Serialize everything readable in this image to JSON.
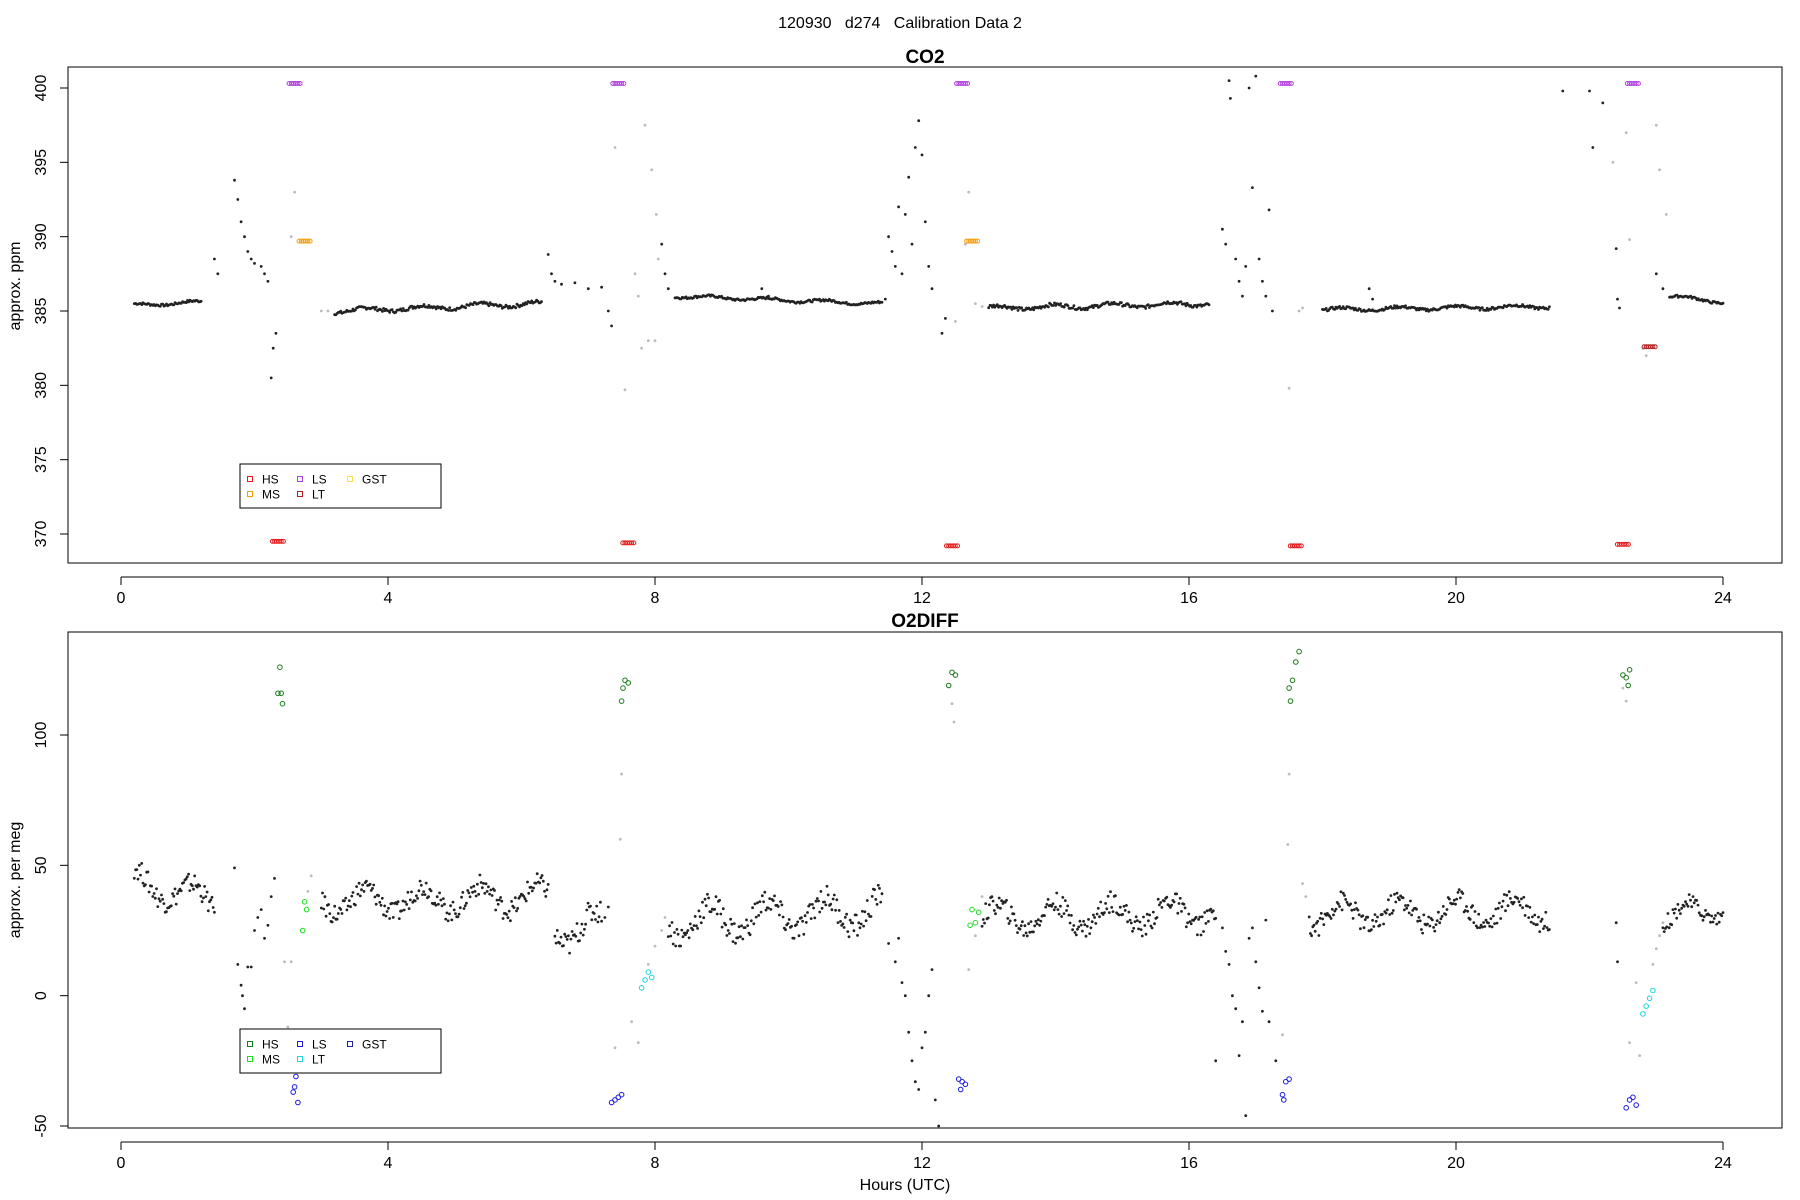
{
  "page_title": "120930   d274   Calibration Data 2",
  "xlabel": "Hours (UTC)",
  "chart_data": [
    {
      "type": "scatter",
      "title": "CO2",
      "xlabel": "",
      "ylabel": "approx. ppm",
      "xlim": [
        0,
        24
      ],
      "ylim": [
        369,
        401
      ],
      "xticks": [
        0,
        4,
        8,
        12,
        16,
        20,
        24
      ],
      "yticks": [
        370,
        375,
        380,
        385,
        390,
        395,
        400
      ],
      "legend": {
        "placement": "bottom-left",
        "entries": [
          {
            "label": "HS",
            "color": "#e41a1c"
          },
          {
            "label": "MS",
            "color": "#f59e0b"
          },
          {
            "label": "LS",
            "color": "#b040e0"
          },
          {
            "label": "LT",
            "color": "#b22222"
          },
          {
            "label": "GST",
            "color": "#f5e050"
          }
        ]
      },
      "calibrations": [
        {
          "name": "HS",
          "color": "#e41a1c",
          "points": [
            [
              2.35,
              369.5
            ],
            [
              7.6,
              369.4
            ],
            [
              12.45,
              369.2
            ],
            [
              17.6,
              369.2
            ],
            [
              22.5,
              369.3
            ]
          ]
        },
        {
          "name": "MS",
          "color": "#f59e0b",
          "points": [
            [
              2.75,
              389.7
            ],
            [
              12.75,
              389.7
            ]
          ]
        },
        {
          "name": "LS",
          "color": "#b040e0",
          "points": [
            [
              2.6,
              400.3
            ],
            [
              7.45,
              400.3
            ],
            [
              12.6,
              400.3
            ],
            [
              17.45,
              400.3
            ],
            [
              22.65,
              400.3
            ]
          ]
        },
        {
          "name": "LT",
          "color": "#b22222",
          "points": [
            [
              22.9,
              382.6
            ]
          ]
        }
      ],
      "ambient_segments": [
        {
          "x": [
            0.2,
            1.2
          ],
          "y": [
            385.4,
            385.6
          ],
          "wave": 0.1
        },
        {
          "x": [
            3.2,
            6.3
          ],
          "y": [
            385.0,
            385.5
          ],
          "wave": 0.15
        },
        {
          "x": [
            8.3,
            11.4
          ],
          "y": [
            386.0,
            385.5
          ],
          "wave": 0.1
        },
        {
          "x": [
            13.0,
            16.3
          ],
          "y": [
            385.2,
            385.5
          ],
          "wave": 0.15
        },
        {
          "x": [
            18.0,
            21.4
          ],
          "y": [
            385.1,
            385.3
          ],
          "wave": 0.12
        },
        {
          "x": [
            23.2,
            24.0
          ],
          "y": [
            386.0,
            385.6
          ],
          "wave": 0.1
        }
      ],
      "transient_points": [
        [
          1.4,
          388.5
        ],
        [
          1.45,
          387.5
        ],
        [
          1.7,
          393.8
        ],
        [
          1.75,
          392.5
        ],
        [
          1.8,
          391.0
        ],
        [
          1.85,
          390.0
        ],
        [
          1.9,
          389.0
        ],
        [
          1.95,
          388.5
        ],
        [
          2.0,
          388.2
        ],
        [
          2.1,
          388.0
        ],
        [
          2.15,
          387.5
        ],
        [
          2.2,
          387.0
        ],
        [
          2.25,
          380.5
        ],
        [
          2.28,
          382.5
        ],
        [
          2.32,
          383.5
        ],
        [
          6.4,
          388.8
        ],
        [
          6.45,
          387.5
        ],
        [
          6.5,
          387.0
        ],
        [
          6.6,
          386.8
        ],
        [
          6.8,
          386.9
        ],
        [
          7.0,
          386.5
        ],
        [
          7.2,
          386.6
        ],
        [
          7.3,
          385.0
        ],
        [
          7.35,
          384.0
        ],
        [
          8.1,
          389.5
        ],
        [
          8.15,
          387.5
        ],
        [
          8.2,
          386.5
        ],
        [
          9.6,
          386.5
        ],
        [
          9.7,
          386.0
        ],
        [
          11.45,
          385.8
        ],
        [
          11.5,
          390.0
        ],
        [
          11.55,
          389.0
        ],
        [
          11.6,
          388.0
        ],
        [
          11.65,
          392.0
        ],
        [
          11.7,
          387.5
        ],
        [
          11.75,
          391.5
        ],
        [
          11.8,
          394.0
        ],
        [
          11.85,
          389.5
        ],
        [
          11.9,
          396.0
        ],
        [
          11.95,
          397.8
        ],
        [
          12.0,
          395.5
        ],
        [
          12.05,
          391.0
        ],
        [
          12.1,
          388.0
        ],
        [
          12.15,
          386.5
        ],
        [
          11.98,
          401.2
        ],
        [
          12.3,
          383.5
        ],
        [
          12.35,
          384.5
        ],
        [
          16.5,
          390.5
        ],
        [
          16.55,
          389.5
        ],
        [
          16.6,
          400.5
        ],
        [
          16.62,
          399.3
        ],
        [
          16.7,
          388.5
        ],
        [
          16.75,
          387.0
        ],
        [
          16.8,
          386.0
        ],
        [
          16.85,
          388.0
        ],
        [
          16.9,
          400.0
        ],
        [
          16.95,
          393.3
        ],
        [
          17.0,
          400.8
        ],
        [
          17.05,
          388.5
        ],
        [
          17.1,
          387.0
        ],
        [
          17.15,
          386.0
        ],
        [
          17.2,
          391.8
        ],
        [
          17.25,
          385.0
        ],
        [
          18.7,
          386.5
        ],
        [
          18.75,
          385.8
        ],
        [
          21.6,
          399.8
        ],
        [
          22.0,
          399.8
        ],
        [
          22.2,
          399.0
        ],
        [
          22.05,
          396.0
        ],
        [
          22.4,
          389.2
        ],
        [
          22.42,
          385.8
        ],
        [
          22.45,
          385.2
        ],
        [
          23.0,
          387.5
        ],
        [
          23.1,
          386.5
        ]
      ],
      "transition_points": [
        [
          3.0,
          385.0
        ],
        [
          3.1,
          385.0
        ],
        [
          2.6,
          393.0
        ],
        [
          2.55,
          390.0
        ],
        [
          7.4,
          396.0
        ],
        [
          7.55,
          379.7
        ],
        [
          7.8,
          382.5
        ],
        [
          7.9,
          383.0
        ],
        [
          8.0,
          383.0
        ],
        [
          7.85,
          397.5
        ],
        [
          7.95,
          394.5
        ],
        [
          8.02,
          391.5
        ],
        [
          8.05,
          388.5
        ],
        [
          7.7,
          387.5
        ],
        [
          7.75,
          386.0
        ],
        [
          12.5,
          384.3
        ],
        [
          12.65,
          389.5
        ],
        [
          12.7,
          393.0
        ],
        [
          12.8,
          385.5
        ],
        [
          12.9,
          385.3
        ],
        [
          17.5,
          379.8
        ],
        [
          17.65,
          385.0
        ],
        [
          17.7,
          385.2
        ],
        [
          22.55,
          397.0
        ],
        [
          22.8,
          382.5
        ],
        [
          22.85,
          382.0
        ],
        [
          23.0,
          397.5
        ],
        [
          23.05,
          394.5
        ],
        [
          23.15,
          391.5
        ],
        [
          22.35,
          395.0
        ],
        [
          22.6,
          389.8
        ]
      ]
    },
    {
      "type": "scatter",
      "title": "O2DIFF",
      "xlabel": "Hours (UTC)",
      "ylabel": "approx. per meg",
      "xlim": [
        0,
        24
      ],
      "ylim": [
        -50,
        140
      ],
      "xticks": [
        0,
        4,
        8,
        12,
        16,
        20,
        24
      ],
      "yticks": [
        -50,
        0,
        50,
        100
      ],
      "legend": {
        "placement": "bottom-left",
        "entries": [
          {
            "label": "HS",
            "color": "#1a7a1a"
          },
          {
            "label": "MS",
            "color": "#22dd22"
          },
          {
            "label": "LS",
            "color": "#1c1cdd"
          },
          {
            "label": "LT",
            "color": "#22d3e0"
          },
          {
            "label": "GST",
            "color": "#2020a0"
          }
        ]
      },
      "calibrations": [
        {
          "name": "HS",
          "color": "#1a7a1a",
          "points": [
            [
              2.38,
              126
            ],
            [
              2.35,
              116
            ],
            [
              2.4,
              116
            ],
            [
              2.42,
              112
            ],
            [
              7.55,
              121
            ],
            [
              7.6,
              120
            ],
            [
              7.5,
              113
            ],
            [
              7.52,
              118
            ],
            [
              12.45,
              124
            ],
            [
              12.4,
              119
            ],
            [
              12.5,
              123
            ],
            [
              17.65,
              132
            ],
            [
              17.6,
              128
            ],
            [
              17.55,
              121
            ],
            [
              17.5,
              118
            ],
            [
              17.52,
              113
            ],
            [
              22.5,
              123
            ],
            [
              22.55,
              122
            ],
            [
              22.6,
              125
            ],
            [
              22.58,
              119
            ]
          ]
        },
        {
          "name": "MS",
          "color": "#22dd22",
          "points": [
            [
              2.75,
              36
            ],
            [
              2.78,
              33
            ],
            [
              2.72,
              25
            ],
            [
              12.75,
              33
            ],
            [
              12.8,
              28
            ],
            [
              12.72,
              27
            ],
            [
              12.85,
              32
            ]
          ]
        },
        {
          "name": "LS",
          "color": "#1c1cdd",
          "points": [
            [
              2.6,
              -35
            ],
            [
              2.62,
              -31
            ],
            [
              2.58,
              -37
            ],
            [
              2.65,
              -41
            ],
            [
              7.4,
              -40
            ],
            [
              7.45,
              -39
            ],
            [
              7.5,
              -38
            ],
            [
              7.35,
              -41
            ],
            [
              12.55,
              -32
            ],
            [
              12.6,
              -33
            ],
            [
              12.65,
              -34
            ],
            [
              12.58,
              -36
            ],
            [
              17.45,
              -33
            ],
            [
              17.5,
              -32
            ],
            [
              17.4,
              -38
            ],
            [
              17.42,
              -40
            ],
            [
              22.6,
              -40
            ],
            [
              22.65,
              -39
            ],
            [
              22.55,
              -43
            ],
            [
              22.7,
              -42
            ]
          ]
        },
        {
          "name": "LT",
          "color": "#22d3e0",
          "points": [
            [
              7.8,
              3
            ],
            [
              7.85,
              6
            ],
            [
              7.9,
              9
            ],
            [
              7.95,
              7
            ],
            [
              22.8,
              -7
            ],
            [
              22.85,
              -4
            ],
            [
              22.9,
              -1
            ],
            [
              22.95,
              2
            ]
          ]
        }
      ],
      "ambient_segments": [
        {
          "x": [
            0.2,
            1.4
          ],
          "y": [
            44,
            36
          ],
          "wave": 5
        },
        {
          "x": [
            3.0,
            6.4
          ],
          "y": [
            36,
            38
          ],
          "wave": 5
        },
        {
          "x": [
            6.5,
            7.2
          ],
          "y": [
            25,
            27
          ],
          "wave": 6
        },
        {
          "x": [
            8.2,
            11.4
          ],
          "y": [
            28,
            33
          ],
          "wave": 6
        },
        {
          "x": [
            12.9,
            16.4
          ],
          "y": [
            30,
            32
          ],
          "wave": 5
        },
        {
          "x": [
            17.8,
            21.4
          ],
          "y": [
            31,
            33
          ],
          "wave": 5
        },
        {
          "x": [
            23.1,
            24.0
          ],
          "y": [
            30,
            34
          ],
          "wave": 4
        }
      ],
      "transient_points": [
        [
          1.7,
          49
        ],
        [
          1.75,
          12
        ],
        [
          1.8,
          4
        ],
        [
          1.82,
          0
        ],
        [
          1.85,
          -5
        ],
        [
          1.9,
          11
        ],
        [
          1.95,
          11
        ],
        [
          2.0,
          25
        ],
        [
          2.05,
          30
        ],
        [
          2.1,
          33
        ],
        [
          2.15,
          22
        ],
        [
          2.2,
          27
        ],
        [
          2.25,
          38
        ],
        [
          2.3,
          45
        ],
        [
          7.3,
          34
        ],
        [
          7.25,
          30
        ],
        [
          11.5,
          20
        ],
        [
          11.6,
          13
        ],
        [
          11.7,
          5
        ],
        [
          11.75,
          0
        ],
        [
          11.8,
          -14
        ],
        [
          11.85,
          -25
        ],
        [
          11.9,
          -33
        ],
        [
          11.95,
          -36
        ],
        [
          12.0,
          -20
        ],
        [
          12.05,
          -14
        ],
        [
          12.1,
          0
        ],
        [
          12.15,
          10
        ],
        [
          12.2,
          -40
        ],
        [
          12.25,
          -50
        ],
        [
          11.65,
          22
        ],
        [
          16.5,
          26
        ],
        [
          16.55,
          17
        ],
        [
          16.6,
          12
        ],
        [
          16.65,
          0
        ],
        [
          16.7,
          -5
        ],
        [
          16.75,
          -23
        ],
        [
          16.8,
          -10
        ],
        [
          16.9,
          22
        ],
        [
          16.95,
          26
        ],
        [
          17.0,
          13
        ],
        [
          17.05,
          3
        ],
        [
          17.1,
          -6
        ],
        [
          17.15,
          29
        ],
        [
          17.2,
          -10
        ],
        [
          16.4,
          -25
        ],
        [
          16.85,
          -46
        ],
        [
          17.3,
          -25
        ],
        [
          22.4,
          28
        ],
        [
          22.42,
          13
        ]
      ],
      "transition_points": [
        [
          2.45,
          13
        ],
        [
          2.5,
          -12
        ],
        [
          2.55,
          13
        ],
        [
          2.8,
          40
        ],
        [
          2.85,
          46
        ],
        [
          7.5,
          85
        ],
        [
          7.48,
          60
        ],
        [
          7.4,
          -20
        ],
        [
          7.65,
          -10
        ],
        [
          7.75,
          -18
        ],
        [
          7.9,
          12
        ],
        [
          8.0,
          19
        ],
        [
          8.1,
          25
        ],
        [
          8.15,
          30
        ],
        [
          12.45,
          112
        ],
        [
          12.48,
          105
        ],
        [
          12.7,
          10
        ],
        [
          12.8,
          23
        ],
        [
          12.9,
          38
        ],
        [
          17.5,
          85
        ],
        [
          17.48,
          58
        ],
        [
          17.4,
          -15
        ],
        [
          17.7,
          43
        ],
        [
          17.75,
          38
        ],
        [
          22.5,
          118
        ],
        [
          22.55,
          113
        ],
        [
          22.6,
          -18
        ],
        [
          22.75,
          -23
        ],
        [
          22.7,
          5
        ],
        [
          23.0,
          18
        ],
        [
          23.05,
          23
        ],
        [
          23.1,
          28
        ],
        [
          22.95,
          12
        ]
      ]
    }
  ]
}
